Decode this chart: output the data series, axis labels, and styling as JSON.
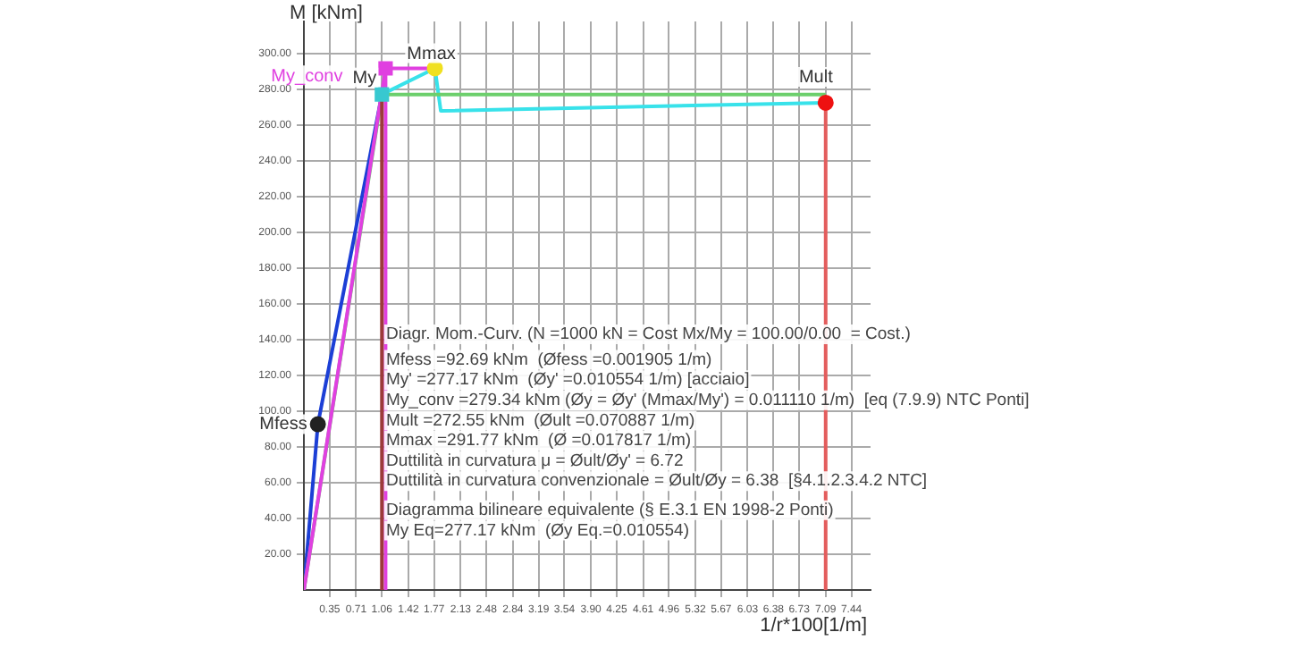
{
  "chart_data": {
    "type": "line",
    "xlabel": "1/r*100[1/m]",
    "ylabel": "M [kNm]",
    "xlim": [
      0,
      7.7
    ],
    "ylim": [
      0,
      318
    ],
    "xticks": [
      0.35,
      0.71,
      1.06,
      1.42,
      1.77,
      2.13,
      2.48,
      2.84,
      3.19,
      3.54,
      {
        "value": 3.9,
        "label": "3.90"
      },
      4.25,
      4.61,
      4.96,
      5.32,
      5.67,
      6.03,
      6.38,
      6.73,
      7.09,
      7.44
    ],
    "yticks": [
      {
        "value": 20,
        "label": "20.00"
      },
      {
        "value": 40,
        "label": "40.00"
      },
      {
        "value": 60,
        "label": "60.00"
      },
      {
        "value": 80,
        "label": "80.00"
      },
      {
        "value": 100,
        "label": "100.00"
      },
      {
        "value": 120,
        "label": "120.00"
      },
      {
        "value": 140,
        "label": "140.00"
      },
      {
        "value": 160,
        "label": "160.00"
      },
      {
        "value": 180,
        "label": "180.00"
      },
      {
        "value": 200,
        "label": "200.00"
      },
      {
        "value": 220,
        "label": "220.00"
      },
      {
        "value": 240,
        "label": "240.00"
      },
      {
        "value": 260,
        "label": "260.00"
      },
      {
        "value": 280,
        "label": "280.00"
      },
      {
        "value": 300,
        "label": "300.00"
      }
    ],
    "grid": true,
    "legend": false,
    "series": [
      {
        "type": "line",
        "color": "#9c3a3a",
        "x": [
          1.06,
          1.06
        ],
        "values": [
          0,
          277.17
        ]
      },
      {
        "type": "line",
        "color": "#e35d5d",
        "x": [
          7.09,
          7.09
        ],
        "values": [
          0,
          272.55
        ]
      },
      {
        "type": "line",
        "color": "#e040e0",
        "x": [
          1.11,
          1.11
        ],
        "values": [
          0,
          291.77
        ]
      },
      {
        "type": "line",
        "color": "#e040e0",
        "x": [
          0,
          1.11,
          1.78
        ],
        "values": [
          0,
          291.77,
          291.77
        ]
      },
      {
        "type": "line",
        "color": "#6ccf6c",
        "x": [
          0,
          1.06,
          7.09
        ],
        "values": [
          0,
          277.17,
          277.17
        ]
      },
      {
        "type": "line",
        "color": "#1c3fd6",
        "x": [
          0,
          0.19,
          1.06
        ],
        "values": [
          0,
          92.69,
          277.17
        ]
      },
      {
        "type": "line",
        "color": "#38e2ea",
        "x": [
          1.06,
          1.78,
          1.86,
          7.09
        ],
        "values": [
          277.17,
          291.77,
          268,
          272.55
        ]
      },
      {
        "type": "scatter",
        "marker": "circle",
        "color": "#222222",
        "x": [
          0.19
        ],
        "values": [
          92.69
        ]
      },
      {
        "type": "scatter",
        "marker": "square",
        "color": "#38c8d0",
        "x": [
          1.06
        ],
        "values": [
          277.17
        ]
      },
      {
        "type": "scatter",
        "marker": "square",
        "color": "#e040e0",
        "x": [
          1.11
        ],
        "values": [
          291.77
        ]
      },
      {
        "type": "scatter",
        "marker": "circle",
        "color": "#f0e020",
        "x": [
          1.78
        ],
        "values": [
          291.77
        ]
      },
      {
        "type": "scatter",
        "marker": "circle",
        "color": "#ee1111",
        "x": [
          7.09
        ],
        "values": [
          272.55
        ]
      }
    ],
    "annotations": [
      {
        "text": "Mfess",
        "x": 0.19,
        "y": 92.69
      },
      {
        "text": "My",
        "x": 1.06,
        "y": 277.17
      },
      {
        "text": "My_conv",
        "x": 1.11,
        "y": 279.34
      },
      {
        "text": "Mmax",
        "x": 1.78,
        "y": 291.77
      },
      {
        "text": "Mult",
        "x": 7.09,
        "y": 272.55
      },
      "Diagr. Mom.-Curv. (N =1000 kN = Cost Mx/My = 100.00/0.00  = Cost.)",
      "Mfess =92.69 kNm  (Øfess =0.001905 1/m)",
      "My' =277.17 kNm  (Øy' =0.010554 1/m) [acciaio]",
      "My_conv =279.34 kNm (Øy = Øy' (Mmax/My') = 0.011110 1/m)  [eq (7.9.9) NTC Ponti]",
      "Mult =272.55 kNm  (Øult =0.070887 1/m)",
      "Mmax =291.77 kNm  (Ø =0.017817 1/m)",
      "Duttilità in curvatura μ = Øult/Øy' = 6.72",
      "Duttilità in curvatura convenzionale = Øult/Øy = 6.38  [§4.1.2.3.4.2 NTC]",
      "Diagramma bilineare equivalente (§ E.3.1 EN 1998-2 Ponti)",
      "My Eq=277.17 kNm  (Øy Eq.=0.010554)"
    ]
  }
}
